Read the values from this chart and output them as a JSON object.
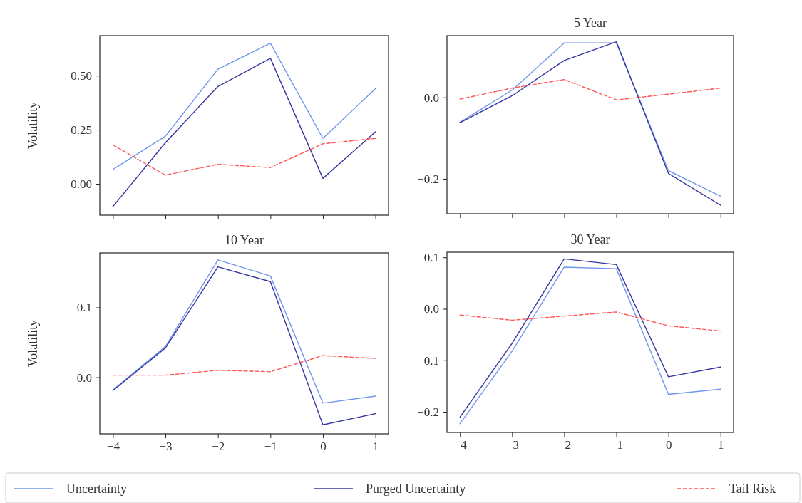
{
  "chart_data": [
    {
      "type": "line",
      "ylabel": "Volatility",
      "x": [
        -4,
        -3,
        -2,
        -1,
        0,
        1
      ],
      "xlim": [
        -4.25,
        1.25
      ],
      "ylim": [
        -0.145,
        0.685
      ],
      "xticks": [
        {
          "value": -4,
          "label": null
        },
        {
          "value": -3,
          "label": null
        },
        {
          "value": -2,
          "label": null
        },
        {
          "value": -1,
          "label": null
        },
        {
          "value": 0,
          "label": null
        },
        {
          "value": 1,
          "label": null
        }
      ],
      "yticks": [
        {
          "value": 0,
          "label": "0.00"
        },
        {
          "value": 0.25,
          "label": "0.25"
        },
        {
          "value": 0.5,
          "label": "0.50"
        }
      ],
      "tick_labels": "y",
      "legend": "bottom",
      "series": [
        {
          "name": "Uncertainty",
          "color": "#6f96ec",
          "values": [
            0.066,
            0.22,
            0.53,
            0.65,
            0.21,
            0.44
          ]
        },
        {
          "name": "Purged Uncertainty",
          "color": "#3535a0",
          "values": [
            -0.105,
            0.19,
            0.45,
            0.58,
            0.025,
            0.24
          ]
        },
        {
          "name": "Tail Risk",
          "color": "#ff5555",
          "line_style": "dashed",
          "values": [
            0.18,
            0.04,
            0.09,
            0.075,
            0.185,
            0.21
          ]
        }
      ]
    },
    {
      "type": "line",
      "title": "5 Year",
      "x": [
        -4,
        -3,
        -2,
        -1,
        0,
        1
      ],
      "xlim": [
        -4.25,
        1.25
      ],
      "ylim": [
        -0.286,
        0.152
      ],
      "xticks": [
        {
          "value": -4,
          "label": null
        },
        {
          "value": -3,
          "label": null
        },
        {
          "value": -2,
          "label": null
        },
        {
          "value": -1,
          "label": null
        },
        {
          "value": 0,
          "label": null
        },
        {
          "value": 1,
          "label": null
        }
      ],
      "yticks": [
        {
          "value": -0.2,
          "label": "−0.2"
        },
        {
          "value": 0,
          "label": "0.0"
        }
      ],
      "tick_labels": "y",
      "series": [
        {
          "color": "#6f96ec",
          "values": [
            -0.061,
            0.018,
            0.134,
            0.134,
            -0.18,
            -0.243
          ]
        },
        {
          "color": "#3535a0",
          "values": [
            -0.062,
            0.004,
            0.091,
            0.137,
            -0.187,
            -0.265
          ]
        },
        {
          "color": "#ff5555",
          "line_style": "dashed",
          "values": [
            -0.004,
            0.023,
            0.044,
            -0.006,
            0.008,
            0.023
          ]
        }
      ]
    },
    {
      "type": "line",
      "title": "10 Year",
      "ylabel": "Volatility",
      "x": [
        -4,
        -3,
        -2,
        -1,
        0,
        1
      ],
      "xlim": [
        -4.25,
        1.25
      ],
      "ylim": [
        -0.081,
        0.178
      ],
      "xticks": [
        {
          "value": -4,
          "label": "−4"
        },
        {
          "value": -3,
          "label": "−3"
        },
        {
          "value": -2,
          "label": "−2"
        },
        {
          "value": -1,
          "label": "−1"
        },
        {
          "value": 0,
          "label": "0"
        },
        {
          "value": 1,
          "label": "1"
        }
      ],
      "yticks": [
        {
          "value": 0,
          "label": "0.0"
        },
        {
          "value": 0.1,
          "label": "0.1"
        }
      ],
      "series": [
        {
          "color": "#6f96ec",
          "values": [
            -0.018,
            0.044,
            0.168,
            0.145,
            -0.037,
            -0.027
          ]
        },
        {
          "color": "#3535a0",
          "values": [
            -0.019,
            0.042,
            0.158,
            0.137,
            -0.068,
            -0.052
          ]
        },
        {
          "color": "#ff5555",
          "line_style": "dashed",
          "values": [
            0.003,
            0.003,
            0.01,
            0.008,
            0.031,
            0.027
          ]
        }
      ]
    },
    {
      "type": "line",
      "title": "30 Year",
      "x": [
        -4,
        -3,
        -2,
        -1,
        0,
        1
      ],
      "xlim": [
        -4.25,
        1.25
      ],
      "ylim": [
        -0.24,
        0.11
      ],
      "xticks": [
        {
          "value": -4,
          "label": "−4"
        },
        {
          "value": -3,
          "label": "−3"
        },
        {
          "value": -2,
          "label": "−2"
        },
        {
          "value": -1,
          "label": "−1"
        },
        {
          "value": 0,
          "label": "0"
        },
        {
          "value": 1,
          "label": "1"
        }
      ],
      "yticks": [
        {
          "value": -0.2,
          "label": "−0.2"
        },
        {
          "value": -0.1,
          "label": "−0.1"
        },
        {
          "value": 0,
          "label": "0.0"
        },
        {
          "value": 0.1,
          "label": "0.1"
        }
      ],
      "series": [
        {
          "color": "#6f96ec",
          "values": [
            -0.223,
            -0.082,
            0.081,
            0.078,
            -0.166,
            -0.156
          ]
        },
        {
          "color": "#3535a0",
          "values": [
            -0.21,
            -0.067,
            0.097,
            0.086,
            -0.132,
            -0.113
          ]
        },
        {
          "color": "#ff5555",
          "line_style": "dashed",
          "values": [
            -0.012,
            -0.022,
            -0.014,
            -0.006,
            -0.033,
            -0.043
          ]
        }
      ]
    }
  ]
}
